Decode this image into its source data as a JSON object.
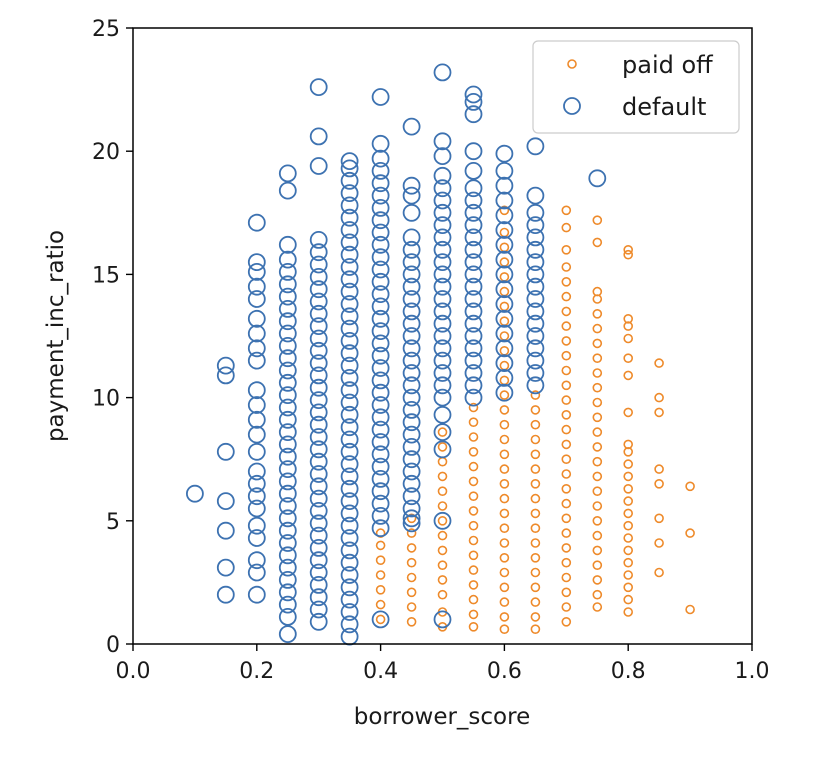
{
  "chart_data": {
    "type": "scatter",
    "xlabel": "borrower_score",
    "ylabel": "payment_inc_ratio",
    "xlim": [
      0.0,
      1.0
    ],
    "ylim": [
      0,
      25
    ],
    "x_ticks": [
      "0.0",
      "0.2",
      "0.4",
      "0.6",
      "0.8",
      "1.0"
    ],
    "y_ticks": [
      "0",
      "5",
      "10",
      "15",
      "20",
      "25"
    ],
    "grid": false,
    "legend_position": "top-right",
    "series": [
      {
        "name": "paid off",
        "color": "#ee8a2a",
        "marker": "small-open-circle",
        "columns": [
          {
            "x": 0.4,
            "y": [
              1.0,
              1.6,
              2.2,
              2.8,
              3.4,
              4.0,
              4.5
            ]
          },
          {
            "x": 0.45,
            "y": [
              0.9,
              1.5,
              2.1,
              2.7,
              3.3,
              3.9,
              4.5,
              5.1
            ]
          },
          {
            "x": 0.5,
            "y": [
              0.7,
              1.3,
              2.0,
              2.6,
              3.2,
              3.8,
              4.4,
              5.0,
              5.6,
              6.2,
              6.8,
              7.4,
              8.0,
              8.6
            ]
          },
          {
            "x": 0.55,
            "y": [
              0.7,
              1.2,
              1.8,
              2.4,
              3.0,
              3.6,
              4.2,
              4.8,
              5.4,
              6.0,
              6.6,
              7.2,
              7.8,
              8.4,
              9.0,
              9.6
            ]
          },
          {
            "x": 0.6,
            "y": [
              0.6,
              1.1,
              1.7,
              2.3,
              2.9,
              3.5,
              4.1,
              4.7,
              5.3,
              5.9,
              6.5,
              7.1,
              7.7,
              8.3,
              8.9,
              9.5,
              10.1,
              10.7,
              11.3,
              11.9,
              12.5,
              13.1,
              13.7,
              14.3,
              14.9,
              15.5,
              16.1,
              16.7,
              17.6
            ]
          },
          {
            "x": 0.65,
            "y": [
              0.6,
              1.1,
              1.7,
              2.3,
              2.9,
              3.5,
              4.1,
              4.7,
              5.3,
              5.9,
              6.5,
              7.1,
              7.7,
              8.3,
              8.9,
              9.5,
              10.1
            ]
          },
          {
            "x": 0.7,
            "y": [
              0.9,
              1.5,
              2.1,
              2.7,
              3.3,
              3.9,
              4.5,
              5.1,
              5.7,
              6.3,
              6.9,
              7.5,
              8.1,
              8.7,
              9.3,
              9.9,
              10.5,
              11.1,
              11.7,
              12.3,
              12.9,
              13.5,
              14.1,
              14.7,
              15.3,
              16.0,
              16.9,
              17.6
            ]
          },
          {
            "x": 0.75,
            "y": [
              1.5,
              2.0,
              2.6,
              3.2,
              3.8,
              4.4,
              5.0,
              5.6,
              6.2,
              6.8,
              7.4,
              8.0,
              8.6,
              9.2,
              9.8,
              10.4,
              11.0,
              11.6,
              12.2,
              12.8,
              13.4,
              14.0,
              14.3,
              16.3,
              17.2
            ]
          },
          {
            "x": 0.8,
            "y": [
              1.3,
              1.8,
              2.3,
              2.8,
              3.3,
              3.8,
              4.3,
              4.8,
              5.3,
              5.8,
              6.3,
              6.8,
              7.3,
              7.8,
              8.1,
              9.4,
              10.9,
              11.6,
              12.4,
              12.9,
              13.2,
              15.8,
              16.0
            ]
          },
          {
            "x": 0.85,
            "y": [
              2.9,
              4.1,
              5.1,
              6.5,
              7.1,
              9.4,
              10.0,
              11.4
            ]
          },
          {
            "x": 0.9,
            "y": [
              1.4,
              4.5,
              6.4
            ]
          }
        ]
      },
      {
        "name": "default",
        "color": "#3d72b1",
        "marker": "large-open-circle",
        "columns": [
          {
            "x": 0.1,
            "y": [
              6.1
            ]
          },
          {
            "x": 0.15,
            "y": [
              2.0,
              3.1,
              4.6,
              5.8,
              7.8,
              10.9,
              11.3
            ]
          },
          {
            "x": 0.2,
            "y": [
              2.0,
              2.9,
              3.4,
              4.3,
              4.8,
              5.5,
              6.0,
              6.5,
              7.0,
              7.8,
              8.5,
              9.1,
              9.7,
              10.3,
              11.5,
              12.0,
              12.6,
              13.2,
              14.0,
              14.5,
              15.1,
              15.5,
              17.1
            ]
          },
          {
            "x": 0.25,
            "y": [
              0.4,
              1.1,
              1.6,
              2.1,
              2.6,
              3.1,
              3.6,
              4.1,
              4.6,
              5.1,
              5.6,
              6.1,
              6.6,
              7.1,
              7.6,
              8.1,
              8.6,
              9.1,
              9.6,
              10.1,
              10.6,
              11.1,
              11.6,
              12.1,
              12.6,
              13.1,
              13.6,
              14.1,
              14.6,
              15.1,
              15.6,
              16.2,
              18.4,
              19.1
            ]
          },
          {
            "x": 0.3,
            "y": [
              0.9,
              1.4,
              1.9,
              2.4,
              2.9,
              3.4,
              3.9,
              4.4,
              4.9,
              5.4,
              5.9,
              6.4,
              6.9,
              7.4,
              7.9,
              8.4,
              8.9,
              9.4,
              9.9,
              10.4,
              10.9,
              11.4,
              11.9,
              12.4,
              12.9,
              13.4,
              13.9,
              14.4,
              14.9,
              15.4,
              15.9,
              16.4,
              19.4,
              20.6,
              22.6
            ]
          },
          {
            "x": 0.35,
            "y": [
              0.3,
              0.8,
              1.3,
              1.8,
              2.3,
              2.8,
              3.3,
              3.8,
              4.3,
              4.8,
              5.3,
              5.8,
              6.3,
              6.8,
              7.3,
              7.8,
              8.3,
              8.8,
              9.3,
              9.8,
              10.3,
              10.8,
              11.3,
              11.8,
              12.3,
              12.8,
              13.3,
              13.8,
              14.3,
              14.8,
              15.3,
              15.8,
              16.3,
              16.8,
              17.3,
              17.8,
              18.3,
              18.8,
              19.3,
              19.6
            ]
          },
          {
            "x": 0.4,
            "y": [
              1.0,
              4.7,
              5.2,
              5.7,
              6.2,
              6.7,
              7.2,
              7.7,
              8.2,
              8.7,
              9.2,
              9.7,
              10.2,
              10.7,
              11.2,
              11.7,
              12.2,
              12.7,
              13.2,
              13.7,
              14.2,
              14.7,
              15.2,
              15.7,
              16.2,
              16.7,
              17.2,
              17.7,
              18.2,
              18.7,
              19.2,
              19.7,
              20.3,
              22.2
            ]
          },
          {
            "x": 0.45,
            "y": [
              4.9,
              5.1,
              5.5,
              6.0,
              6.5,
              7.0,
              7.5,
              8.0,
              8.5,
              9.0,
              9.5,
              10.0,
              10.5,
              11.0,
              11.5,
              12.0,
              12.5,
              13.0,
              13.5,
              14.0,
              14.5,
              15.0,
              15.5,
              16.0,
              16.5,
              17.5,
              18.2,
              18.6,
              21.0
            ]
          },
          {
            "x": 0.5,
            "y": [
              1.0,
              5.0,
              7.9,
              8.6,
              9.3,
              10.0,
              10.5,
              11.0,
              11.5,
              12.0,
              12.5,
              13.0,
              13.5,
              14.0,
              14.5,
              15.0,
              15.5,
              16.0,
              16.5,
              17.0,
              17.5,
              18.0,
              18.5,
              19.0,
              19.8,
              20.4,
              23.2
            ]
          },
          {
            "x": 0.55,
            "y": [
              10.0,
              10.5,
              11.0,
              11.5,
              12.0,
              12.5,
              13.0,
              13.5,
              14.0,
              14.5,
              15.0,
              15.5,
              16.0,
              16.5,
              17.0,
              17.5,
              18.0,
              18.5,
              19.2,
              20.0,
              21.5,
              22.0,
              22.3
            ]
          },
          {
            "x": 0.6,
            "y": [
              10.2,
              10.8,
              11.4,
              12.0,
              12.6,
              13.2,
              13.8,
              14.4,
              15.0,
              15.6,
              16.2,
              16.8,
              17.4,
              18.0,
              18.6,
              19.2,
              19.9
            ]
          },
          {
            "x": 0.65,
            "y": [
              10.5,
              11.0,
              11.5,
              12.0,
              12.5,
              13.0,
              13.5,
              14.0,
              14.5,
              15.0,
              15.5,
              16.0,
              16.5,
              17.0,
              17.5,
              18.2,
              20.2
            ]
          },
          {
            "x": 0.75,
            "y": [
              18.9
            ]
          }
        ]
      }
    ]
  }
}
